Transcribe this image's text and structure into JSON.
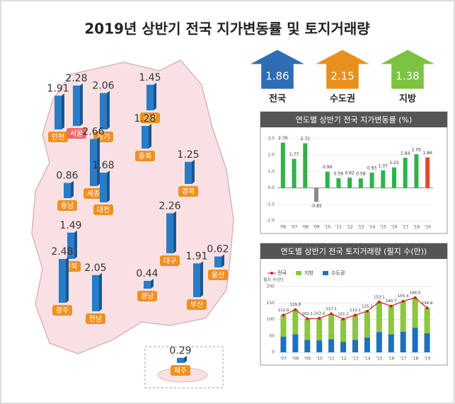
{
  "title": "2019년 상반기 전국 지가변동률 및 토지거래량",
  "summary": [
    {
      "label": "전국",
      "value": 1.86,
      "color": "#2e6db4"
    },
    {
      "label": "수도권",
      "value": 2.15,
      "color": "#e8901e"
    },
    {
      "label": "지방",
      "value": 1.38,
      "color": "#7cc341"
    }
  ],
  "map": {
    "bar_color": "#2a7cc7",
    "regions": [
      {
        "name": "인천",
        "value": 1.91
      },
      {
        "name": "서울",
        "value": 2.28
      },
      {
        "name": "경기",
        "value": 2.06
      },
      {
        "name": "강원",
        "value": 1.45
      },
      {
        "name": "충북",
        "value": 1.28
      },
      {
        "name": "세종",
        "value": 2.66
      },
      {
        "name": "충남",
        "value": 0.86
      },
      {
        "name": "대전",
        "value": 1.68
      },
      {
        "name": "경북",
        "value": 1.25
      },
      {
        "name": "전북",
        "value": 1.49
      },
      {
        "name": "대구",
        "value": 2.26
      },
      {
        "name": "울산",
        "value": 0.62
      },
      {
        "name": "광주",
        "value": 2.48
      },
      {
        "name": "전남",
        "value": 2.05
      },
      {
        "name": "경남",
        "value": 0.44
      },
      {
        "name": "부산",
        "value": 1.91
      },
      {
        "name": "제주",
        "value": 0.29
      }
    ]
  },
  "chart_data": [
    {
      "type": "bar",
      "title": "연도별 상반기 전국 지가변동률 (%)",
      "categories": [
        "'06",
        "'07",
        "'08",
        "'09",
        "'10",
        "'11",
        "'12",
        "'13",
        "'14",
        "'15",
        "'16",
        "'17",
        "'18",
        "'19"
      ],
      "values": [
        2.76,
        1.77,
        2.72,
        -0.85,
        0.99,
        0.59,
        0.62,
        0.58,
        0.93,
        1.07,
        1.25,
        1.84,
        2.05,
        1.86
      ],
      "colors": [
        "#2db34a",
        "#2db34a",
        "#2db34a",
        "#8a8a8a",
        "#2db34a",
        "#2db34a",
        "#2db34a",
        "#2db34a",
        "#2db34a",
        "#2db34a",
        "#2db34a",
        "#2db34a",
        "#2db34a",
        "#e8452c"
      ],
      "ylim": [
        -2,
        3
      ],
      "yticks": [
        {
          "value": -2,
          "label": "-2.0"
        },
        {
          "value": -1,
          "label": "-1.0"
        },
        {
          "value": 0,
          "label": "0.0"
        },
        {
          "value": 1,
          "label": "1.0"
        },
        {
          "value": 2,
          "label": "2.0"
        },
        {
          "value": 3,
          "label": "3.0"
        }
      ]
    },
    {
      "type": "stacked-bar-line",
      "title": "연도별 상반기 전국 토지거래량 (필지 수(만))",
      "y_label": "필지 수(만)",
      "categories": [
        "'07",
        "'08",
        "'09",
        "'10",
        "'11",
        "'12",
        "'13",
        "'14",
        "'15",
        "'16",
        "'17",
        "'18",
        "'19"
      ],
      "series": [
        {
          "name": "전국",
          "type": "line",
          "color": "#c9221c",
          "values": [
            112.9,
            129.8,
            102.1,
            103.4,
            117.1,
            101.2,
            113.1,
            125.1,
            153.1,
            140.7,
            155.4,
            166.0,
            134.9
          ],
          "value_labels": [
            "112.9",
            "129.8",
            "102.1",
            "103.4",
            "117.1",
            "101.2",
            "113.1",
            "125.1",
            "153.1",
            "140.7",
            "155.4",
            "166.0",
            "134.9"
          ]
        },
        {
          "name": "지방",
          "type": "bar",
          "color": "#8dc63f",
          "values": [
            65,
            75,
            64,
            66,
            77,
            69,
            75,
            80,
            91,
            86,
            92,
            91,
            77
          ]
        },
        {
          "name": "수도권",
          "type": "bar",
          "color": "#1f6fc0",
          "values": [
            48,
            55,
            38,
            37,
            40,
            32,
            38,
            45,
            62,
            55,
            63,
            75,
            58
          ]
        }
      ],
      "ylim": [
        0,
        200
      ],
      "yticks": [
        0,
        50,
        100,
        150,
        200
      ]
    }
  ]
}
